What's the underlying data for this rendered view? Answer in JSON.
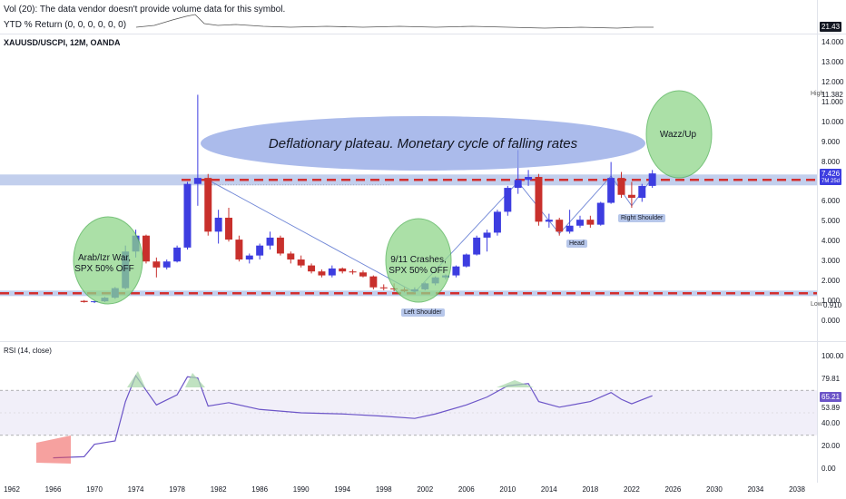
{
  "header": {
    "vol_label": "Vol (20): The data vendor doesn't provide volume data for this symbol.",
    "ytd_label": "YTD % Return (0, 0, 0, 0, 0, 0)",
    "symbol_label": "XAUUSD/USCPI, 12M, OANDA",
    "ytd_value": "21.43"
  },
  "colors": {
    "up": "#3d3de0",
    "down": "#c8302c",
    "resistance": "#d32f2f",
    "band": "#b7c7ea",
    "rsi_line": "#6c55c8",
    "ellipse": "#8fa4e4",
    "circle": "#8fd68a"
  },
  "price_axis": {
    "ticks": [
      "14.000",
      "13.000",
      "12.000",
      "11.000",
      "10.000",
      "9.000",
      "8.000",
      "6.000",
      "5.000",
      "4.000",
      "3.000",
      "2.000",
      "1.000",
      "0.000"
    ],
    "high_label": "High",
    "high_value": "11.382",
    "low_label": "Low",
    "low_value": "0.910",
    "last_value": "7.426",
    "last_sub": "7M 25d"
  },
  "rsi_panel": {
    "label": "RSI (14, close)",
    "ticks": [
      "100.00",
      "79.81",
      "53.89",
      "40.00",
      "20.00",
      "0.00"
    ],
    "last_value": "65.21"
  },
  "x_axis": {
    "labels": [
      "1962",
      "1966",
      "1970",
      "1974",
      "1978",
      "1982",
      "1986",
      "1990",
      "1994",
      "1998",
      "2002",
      "2006",
      "2010",
      "2014",
      "2018",
      "2022",
      "2026",
      "2030",
      "2034",
      "2038"
    ]
  },
  "annotations": {
    "plateau": "Deflationary plateau. Monetary cycle of falling rates",
    "arab_line1": "Arab/Izr War,",
    "arab_line2": "SPX 50% OFF",
    "nine_line1": "9/11 Crashes,",
    "nine_line2": "SPX 50% OFF",
    "wazz": "Wazz/Up",
    "left_shoulder": "Left Shoulder",
    "head": "Head",
    "right_shoulder": "Right Shoulder"
  },
  "chart_data": {
    "type": "candlestick",
    "title": "XAUUSD/USCPI, 12M, OANDA",
    "x_unit": "year",
    "ylim": [
      0,
      14.5
    ],
    "high": 11.382,
    "low": 0.91,
    "last": 7.426,
    "levels": [
      1.4,
      7.1
    ],
    "candles": [
      {
        "x": 1969,
        "o": 1.02,
        "h": 1.06,
        "l": 0.93,
        "c": 0.96
      },
      {
        "x": 1970,
        "o": 0.96,
        "h": 1.02,
        "l": 0.91,
        "c": 1.0
      },
      {
        "x": 1971,
        "o": 1.0,
        "h": 1.22,
        "l": 0.96,
        "c": 1.18
      },
      {
        "x": 1972,
        "o": 1.18,
        "h": 1.72,
        "l": 1.12,
        "c": 1.66
      },
      {
        "x": 1973,
        "o": 1.66,
        "h": 3.8,
        "l": 1.6,
        "c": 3.5
      },
      {
        "x": 1974,
        "o": 3.5,
        "h": 4.6,
        "l": 3.2,
        "c": 4.3
      },
      {
        "x": 1975,
        "o": 4.3,
        "h": 4.35,
        "l": 2.9,
        "c": 3.0
      },
      {
        "x": 1976,
        "o": 3.0,
        "h": 3.2,
        "l": 2.2,
        "c": 2.7
      },
      {
        "x": 1977,
        "o": 2.7,
        "h": 3.1,
        "l": 2.6,
        "c": 3.0
      },
      {
        "x": 1978,
        "o": 3.0,
        "h": 3.8,
        "l": 2.95,
        "c": 3.7
      },
      {
        "x": 1979,
        "o": 3.7,
        "h": 7.0,
        "l": 3.6,
        "c": 6.9
      },
      {
        "x": 1980,
        "o": 6.9,
        "h": 11.38,
        "l": 5.8,
        "c": 7.2
      },
      {
        "x": 1981,
        "o": 7.2,
        "h": 7.4,
        "l": 4.3,
        "c": 4.5
      },
      {
        "x": 1982,
        "o": 4.5,
        "h": 5.6,
        "l": 3.9,
        "c": 5.2
      },
      {
        "x": 1983,
        "o": 5.2,
        "h": 5.7,
        "l": 4.0,
        "c": 4.1
      },
      {
        "x": 1984,
        "o": 4.1,
        "h": 4.3,
        "l": 3.0,
        "c": 3.1
      },
      {
        "x": 1985,
        "o": 3.1,
        "h": 3.4,
        "l": 2.9,
        "c": 3.3
      },
      {
        "x": 1986,
        "o": 3.3,
        "h": 3.9,
        "l": 3.1,
        "c": 3.8
      },
      {
        "x": 1987,
        "o": 3.8,
        "h": 4.5,
        "l": 3.6,
        "c": 4.2
      },
      {
        "x": 1988,
        "o": 4.2,
        "h": 4.3,
        "l": 3.3,
        "c": 3.4
      },
      {
        "x": 1989,
        "o": 3.4,
        "h": 3.5,
        "l": 2.9,
        "c": 3.1
      },
      {
        "x": 1990,
        "o": 3.1,
        "h": 3.3,
        "l": 2.7,
        "c": 2.8
      },
      {
        "x": 1991,
        "o": 2.8,
        "h": 2.9,
        "l": 2.4,
        "c": 2.5
      },
      {
        "x": 1992,
        "o": 2.5,
        "h": 2.6,
        "l": 2.2,
        "c": 2.3
      },
      {
        "x": 1993,
        "o": 2.3,
        "h": 2.8,
        "l": 2.2,
        "c": 2.65
      },
      {
        "x": 1994,
        "o": 2.65,
        "h": 2.7,
        "l": 2.4,
        "c": 2.5
      },
      {
        "x": 1995,
        "o": 2.5,
        "h": 2.6,
        "l": 2.35,
        "c": 2.45
      },
      {
        "x": 1996,
        "o": 2.45,
        "h": 2.55,
        "l": 2.2,
        "c": 2.25
      },
      {
        "x": 1997,
        "o": 2.25,
        "h": 2.3,
        "l": 1.6,
        "c": 1.7
      },
      {
        "x": 1998,
        "o": 1.7,
        "h": 1.85,
        "l": 1.55,
        "c": 1.65
      },
      {
        "x": 1999,
        "o": 1.65,
        "h": 1.9,
        "l": 1.5,
        "c": 1.6
      },
      {
        "x": 2000,
        "o": 1.6,
        "h": 1.7,
        "l": 1.45,
        "c": 1.5
      },
      {
        "x": 2001,
        "o": 1.5,
        "h": 1.7,
        "l": 1.45,
        "c": 1.6
      },
      {
        "x": 2002,
        "o": 1.6,
        "h": 1.95,
        "l": 1.55,
        "c": 1.9
      },
      {
        "x": 2003,
        "o": 1.9,
        "h": 2.25,
        "l": 1.8,
        "c": 2.2
      },
      {
        "x": 2004,
        "o": 2.2,
        "h": 2.35,
        "l": 2.1,
        "c": 2.3
      },
      {
        "x": 2005,
        "o": 2.3,
        "h": 2.8,
        "l": 2.2,
        "c": 2.75
      },
      {
        "x": 2006,
        "o": 2.75,
        "h": 3.4,
        "l": 2.7,
        "c": 3.35
      },
      {
        "x": 2007,
        "o": 3.35,
        "h": 4.3,
        "l": 3.3,
        "c": 4.2
      },
      {
        "x": 2008,
        "o": 4.2,
        "h": 4.6,
        "l": 3.5,
        "c": 4.45
      },
      {
        "x": 2009,
        "o": 4.45,
        "h": 5.6,
        "l": 4.3,
        "c": 5.5
      },
      {
        "x": 2010,
        "o": 5.5,
        "h": 6.8,
        "l": 5.3,
        "c": 6.7
      },
      {
        "x": 2011,
        "o": 6.7,
        "h": 8.6,
        "l": 6.4,
        "c": 7.1
      },
      {
        "x": 2012,
        "o": 7.1,
        "h": 7.6,
        "l": 6.8,
        "c": 7.25
      },
      {
        "x": 2013,
        "o": 7.25,
        "h": 7.4,
        "l": 4.8,
        "c": 5.0
      },
      {
        "x": 2014,
        "o": 5.0,
        "h": 5.4,
        "l": 4.7,
        "c": 5.1
      },
      {
        "x": 2015,
        "o": 5.1,
        "h": 5.2,
        "l": 4.3,
        "c": 4.5
      },
      {
        "x": 2016,
        "o": 4.5,
        "h": 5.6,
        "l": 4.4,
        "c": 4.8
      },
      {
        "x": 2017,
        "o": 4.8,
        "h": 5.3,
        "l": 4.7,
        "c": 5.1
      },
      {
        "x": 2018,
        "o": 5.1,
        "h": 5.3,
        "l": 4.7,
        "c": 4.85
      },
      {
        "x": 2019,
        "o": 4.85,
        "h": 6.0,
        "l": 4.8,
        "c": 5.95
      },
      {
        "x": 2020,
        "o": 5.95,
        "h": 8.0,
        "l": 5.9,
        "c": 7.2
      },
      {
        "x": 2021,
        "o": 7.2,
        "h": 7.5,
        "l": 6.2,
        "c": 6.35
      },
      {
        "x": 2022,
        "o": 6.35,
        "h": 7.0,
        "l": 5.7,
        "c": 6.2
      },
      {
        "x": 2023,
        "o": 6.2,
        "h": 6.9,
        "l": 6.0,
        "c": 6.8
      },
      {
        "x": 2024,
        "o": 6.8,
        "h": 7.6,
        "l": 6.7,
        "c": 7.426
      }
    ],
    "rsi": {
      "name": "RSI (14, close)",
      "ylim": [
        0,
        100
      ],
      "bands": [
        30,
        70
      ],
      "points": [
        [
          1966,
          10
        ],
        [
          1969,
          11
        ],
        [
          1970,
          22
        ],
        [
          1972,
          25
        ],
        [
          1973,
          60
        ],
        [
          1974,
          83
        ],
        [
          1976,
          57
        ],
        [
          1978,
          66
        ],
        [
          1979,
          82
        ],
        [
          1980,
          81
        ],
        [
          1981,
          56
        ],
        [
          1983,
          59
        ],
        [
          1986,
          53
        ],
        [
          1990,
          50
        ],
        [
          1994,
          49
        ],
        [
          1998,
          47
        ],
        [
          2001,
          45
        ],
        [
          2003,
          49
        ],
        [
          2006,
          57
        ],
        [
          2008,
          64
        ],
        [
          2010,
          74
        ],
        [
          2012,
          76
        ],
        [
          2013,
          60
        ],
        [
          2015,
          55
        ],
        [
          2018,
          60
        ],
        [
          2020,
          68
        ],
        [
          2021,
          62
        ],
        [
          2022,
          58
        ],
        [
          2024,
          65.21
        ]
      ]
    },
    "ytd_return": {
      "name": "YTD % Return (0, 0, 0, 0, 0, 0)",
      "last": 21.43
    }
  }
}
